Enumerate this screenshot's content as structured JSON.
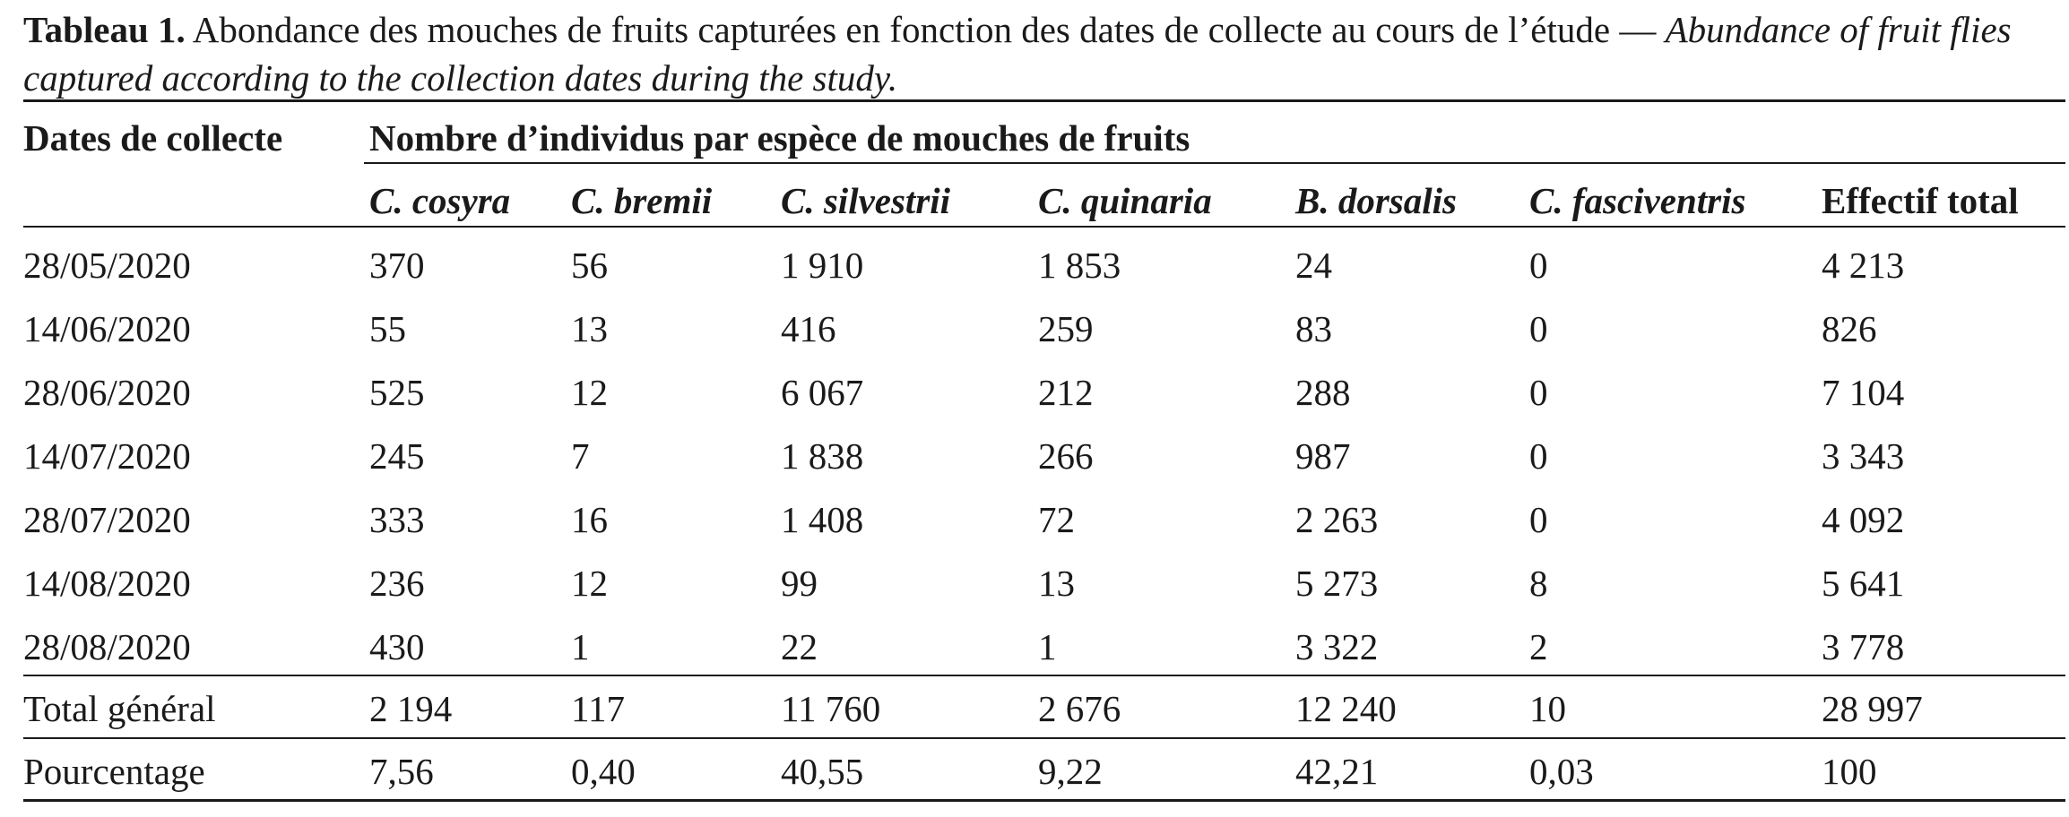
{
  "caption": {
    "label": "Tableau 1.",
    "text_fr": " Abondance des mouches de fruits capturées en fonction des dates de collecte au cours de l’étude — ",
    "text_en": "Abundance of fruit flies captured according to the collection dates during the study."
  },
  "table": {
    "header": {
      "dates": "Dates de collecte",
      "group": "Nombre d’individus par espèce de mouches de fruits",
      "columns": [
        "C. cosyra",
        "C. bremii",
        "C. silvestrii",
        "C. quinaria",
        "B. dorsalis",
        "C. fasciventris",
        "Effectif total"
      ]
    },
    "rows": [
      [
        "28/05/2020",
        "370",
        "56",
        "1 910",
        "1 853",
        "24",
        "0",
        "4 213"
      ],
      [
        "14/06/2020",
        "55",
        "13",
        "416",
        "259",
        "83",
        "0",
        "826"
      ],
      [
        "28/06/2020",
        "525",
        "12",
        "6 067",
        "212",
        "288",
        "0",
        "7 104"
      ],
      [
        "14/07/2020",
        "245",
        "7",
        "1 838",
        "266",
        "987",
        "0",
        "3 343"
      ],
      [
        "28/07/2020",
        "333",
        "16",
        "1 408",
        "72",
        "2 263",
        "0",
        "4 092"
      ],
      [
        "14/08/2020",
        "236",
        "12",
        "99",
        "13",
        "5 273",
        "8",
        "5 641"
      ],
      [
        "28/08/2020",
        "430",
        "1",
        "22",
        "1",
        "3 322",
        "2",
        "3 778"
      ]
    ],
    "total": [
      "Total général",
      "2 194",
      "117",
      "11 760",
      "2 676",
      "12 240",
      "10",
      "28 997"
    ],
    "percentage": [
      "Pourcentage",
      "7,56",
      "0,40",
      "40,55",
      "9,22",
      "42,21",
      "0,03",
      "100"
    ]
  }
}
